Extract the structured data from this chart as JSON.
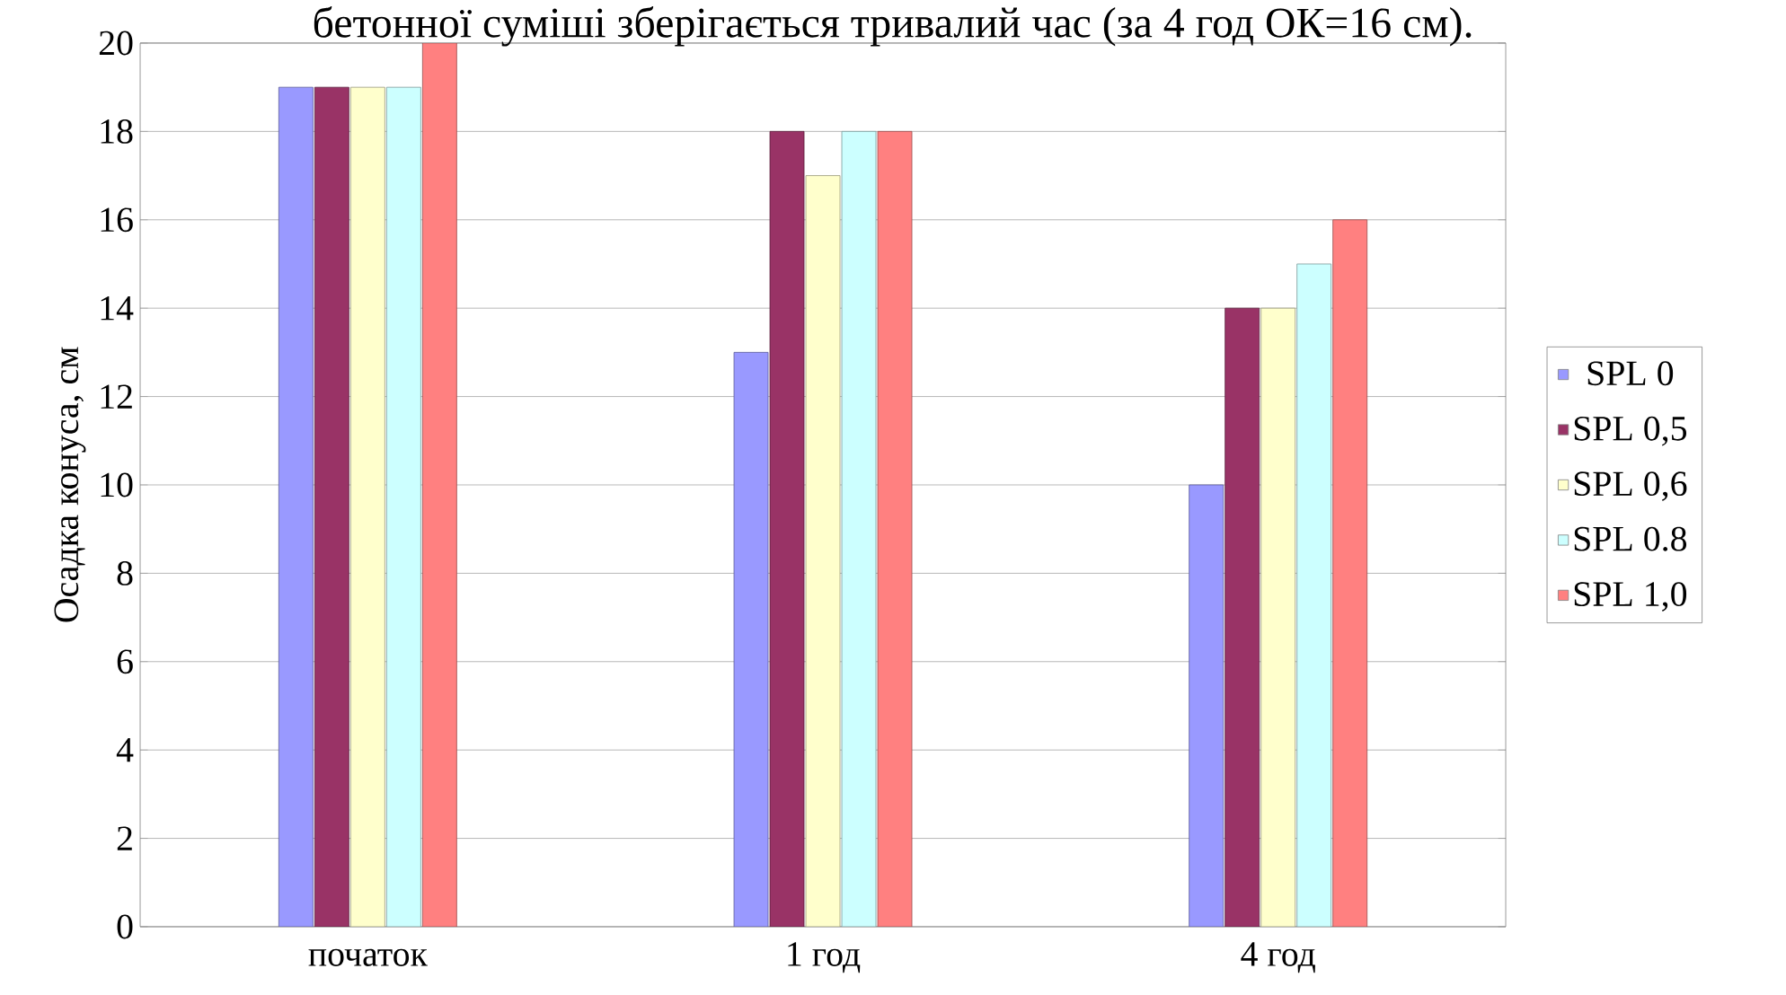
{
  "chart_data": {
    "type": "bar",
    "annotations": [
      "бетонної суміші зберігається тривалий час (за 4 год ОК=16 см)."
    ],
    "ylabel": "Осадка конуса, см",
    "categories": [
      "початок",
      "1 год",
      "4 год"
    ],
    "series": [
      {
        "name": "SPL 0",
        "color": "#9999ff",
        "values": [
          19,
          13,
          10
        ]
      },
      {
        "name": "SPL 0,5",
        "color": "#993366",
        "values": [
          19,
          18,
          14
        ]
      },
      {
        "name": "SPL 0,6",
        "color": "#ffffcc",
        "values": [
          19,
          17,
          14
        ]
      },
      {
        "name": "SPL 0.8",
        "color": "#ccffff",
        "values": [
          19,
          18,
          15
        ]
      },
      {
        "name": "SPL 1,0",
        "color": "#ff8080",
        "values": [
          20,
          18,
          16
        ]
      }
    ],
    "ylim": [
      0,
      20
    ],
    "yticks": [
      0,
      2,
      4,
      6,
      8,
      10,
      12,
      14,
      16,
      18,
      20
    ],
    "grid": "y",
    "legend": "right"
  }
}
